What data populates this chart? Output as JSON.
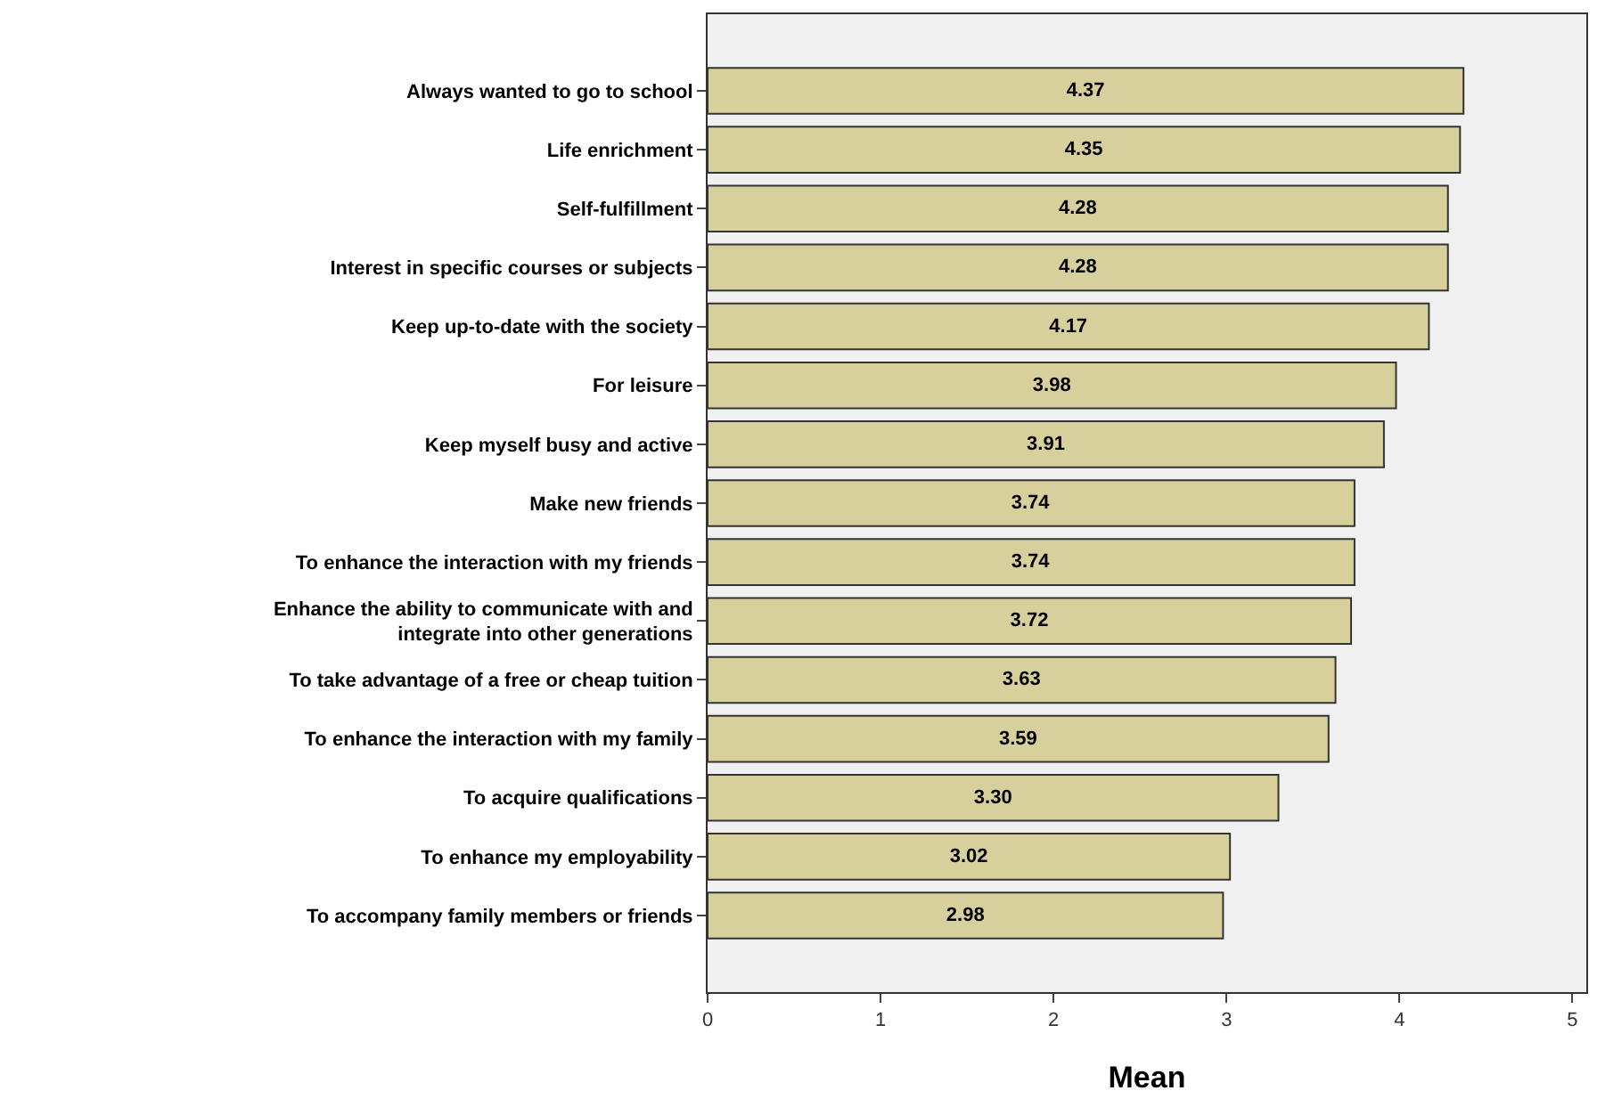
{
  "chart_data": {
    "type": "bar",
    "orientation": "horizontal",
    "xlabel": "Mean",
    "categories": [
      "Always wanted to go to school",
      "Life enrichment",
      "Self-fulfillment",
      "Interest in specific courses or subjects",
      "Keep up-to-date with the society",
      "For leisure",
      "Keep myself busy and active",
      "Make new friends",
      "To enhance the interaction with my friends",
      "Enhance the ability to communicate with and integrate into other generations",
      "To take advantage of a free or cheap tuition",
      "To enhance the interaction with my family",
      "To acquire qualifications",
      "To enhance my employability",
      "To accompany family members or friends"
    ],
    "values": [
      4.37,
      4.35,
      4.28,
      4.28,
      4.17,
      3.98,
      3.91,
      3.74,
      3.74,
      3.72,
      3.63,
      3.59,
      3.3,
      3.02,
      2.98
    ],
    "value_labels": [
      "4.37",
      "4.35",
      "4.28",
      "4.28",
      "4.17",
      "3.98",
      "3.91",
      "3.74",
      "3.74",
      "3.72",
      "3.63",
      "3.59",
      "3.30",
      "3.02",
      "2.98"
    ],
    "color": "#d8d09c",
    "xlim": [
      0,
      5.08
    ],
    "xticks": [
      0,
      1,
      2,
      3,
      4,
      5
    ]
  }
}
